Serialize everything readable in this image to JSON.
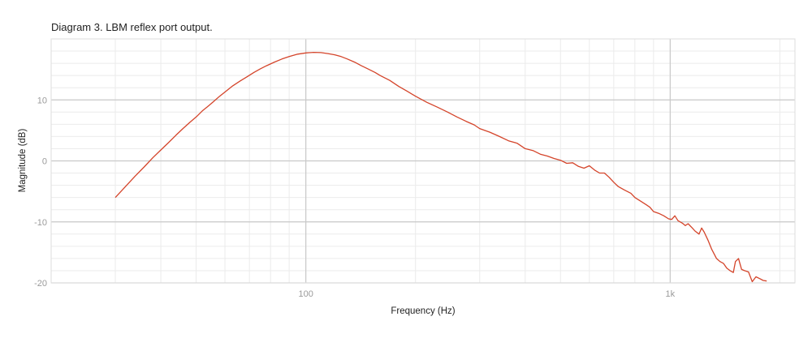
{
  "chart_data": {
    "type": "line",
    "title": "Diagram 3. LBM reflex port output.",
    "xlabel": "Frequency (Hz)",
    "ylabel": "Magnitude (dB)",
    "x_scale": "log",
    "xlim": [
      20,
      2200
    ],
    "ylim": [
      -20,
      20
    ],
    "grid": true,
    "x_ticks": [
      {
        "value": 100,
        "label": "100"
      },
      {
        "value": 1000,
        "label": "1k"
      }
    ],
    "y_ticks": [
      {
        "value": 10,
        "label": "10"
      },
      {
        "value": 0,
        "label": "0"
      },
      {
        "value": -10,
        "label": "-10"
      },
      {
        "value": -20,
        "label": "-20"
      }
    ],
    "series": [
      {
        "color": "#d4442a",
        "points": [
          [
            30,
            -6.0
          ],
          [
            32,
            -4.2
          ],
          [
            34,
            -2.5
          ],
          [
            36,
            -1.0
          ],
          [
            38,
            0.5
          ],
          [
            40,
            1.8
          ],
          [
            42,
            3.0
          ],
          [
            44,
            4.2
          ],
          [
            46,
            5.3
          ],
          [
            48,
            6.3
          ],
          [
            50,
            7.2
          ],
          [
            52,
            8.2
          ],
          [
            54,
            9.0
          ],
          [
            56,
            9.8
          ],
          [
            58,
            10.6
          ],
          [
            60,
            11.3
          ],
          [
            63,
            12.3
          ],
          [
            66,
            13.1
          ],
          [
            69,
            13.8
          ],
          [
            72,
            14.5
          ],
          [
            75,
            15.1
          ],
          [
            78,
            15.6
          ],
          [
            82,
            16.2
          ],
          [
            86,
            16.7
          ],
          [
            90,
            17.1
          ],
          [
            95,
            17.5
          ],
          [
            100,
            17.7
          ],
          [
            105,
            17.8
          ],
          [
            110,
            17.75
          ],
          [
            115,
            17.6
          ],
          [
            120,
            17.4
          ],
          [
            125,
            17.1
          ],
          [
            130,
            16.7
          ],
          [
            136,
            16.2
          ],
          [
            142,
            15.6
          ],
          [
            148,
            15.1
          ],
          [
            155,
            14.5
          ],
          [
            160,
            14.0
          ],
          [
            170,
            13.2
          ],
          [
            180,
            12.2
          ],
          [
            190,
            11.4
          ],
          [
            200,
            10.6
          ],
          [
            215,
            9.6
          ],
          [
            230,
            8.8
          ],
          [
            245,
            8.0
          ],
          [
            260,
            7.2
          ],
          [
            275,
            6.5
          ],
          [
            290,
            5.9
          ],
          [
            300,
            5.3
          ],
          [
            320,
            4.7
          ],
          [
            340,
            4.0
          ],
          [
            360,
            3.3
          ],
          [
            380,
            2.9
          ],
          [
            400,
            2.0
          ],
          [
            420,
            1.7
          ],
          [
            440,
            1.1
          ],
          [
            460,
            0.8
          ],
          [
            480,
            0.4
          ],
          [
            500,
            0.1
          ],
          [
            520,
            -0.4
          ],
          [
            540,
            -0.3
          ],
          [
            560,
            -0.9
          ],
          [
            580,
            -1.2
          ],
          [
            600,
            -0.8
          ],
          [
            620,
            -1.5
          ],
          [
            640,
            -2.0
          ],
          [
            660,
            -2.0
          ],
          [
            680,
            -2.7
          ],
          [
            700,
            -3.5
          ],
          [
            720,
            -4.2
          ],
          [
            750,
            -4.8
          ],
          [
            780,
            -5.3
          ],
          [
            800,
            -6.0
          ],
          [
            830,
            -6.6
          ],
          [
            860,
            -7.2
          ],
          [
            880,
            -7.6
          ],
          [
            900,
            -8.3
          ],
          [
            930,
            -8.6
          ],
          [
            960,
            -9.0
          ],
          [
            990,
            -9.5
          ],
          [
            1010,
            -9.6
          ],
          [
            1030,
            -9.0
          ],
          [
            1050,
            -9.8
          ],
          [
            1080,
            -10.2
          ],
          [
            1100,
            -10.6
          ],
          [
            1120,
            -10.3
          ],
          [
            1150,
            -11.0
          ],
          [
            1170,
            -11.5
          ],
          [
            1200,
            -12.0
          ],
          [
            1220,
            -11.0
          ],
          [
            1240,
            -11.7
          ],
          [
            1270,
            -13.0
          ],
          [
            1300,
            -14.5
          ],
          [
            1340,
            -16.0
          ],
          [
            1370,
            -16.5
          ],
          [
            1400,
            -16.8
          ],
          [
            1430,
            -17.6
          ],
          [
            1460,
            -18.0
          ],
          [
            1490,
            -18.3
          ],
          [
            1510,
            -16.5
          ],
          [
            1540,
            -16.0
          ],
          [
            1570,
            -17.8
          ],
          [
            1600,
            -18.0
          ],
          [
            1640,
            -18.2
          ],
          [
            1680,
            -19.8
          ],
          [
            1720,
            -19.0
          ],
          [
            1760,
            -19.3
          ],
          [
            1800,
            -19.6
          ],
          [
            1840,
            -19.7
          ]
        ]
      }
    ]
  }
}
